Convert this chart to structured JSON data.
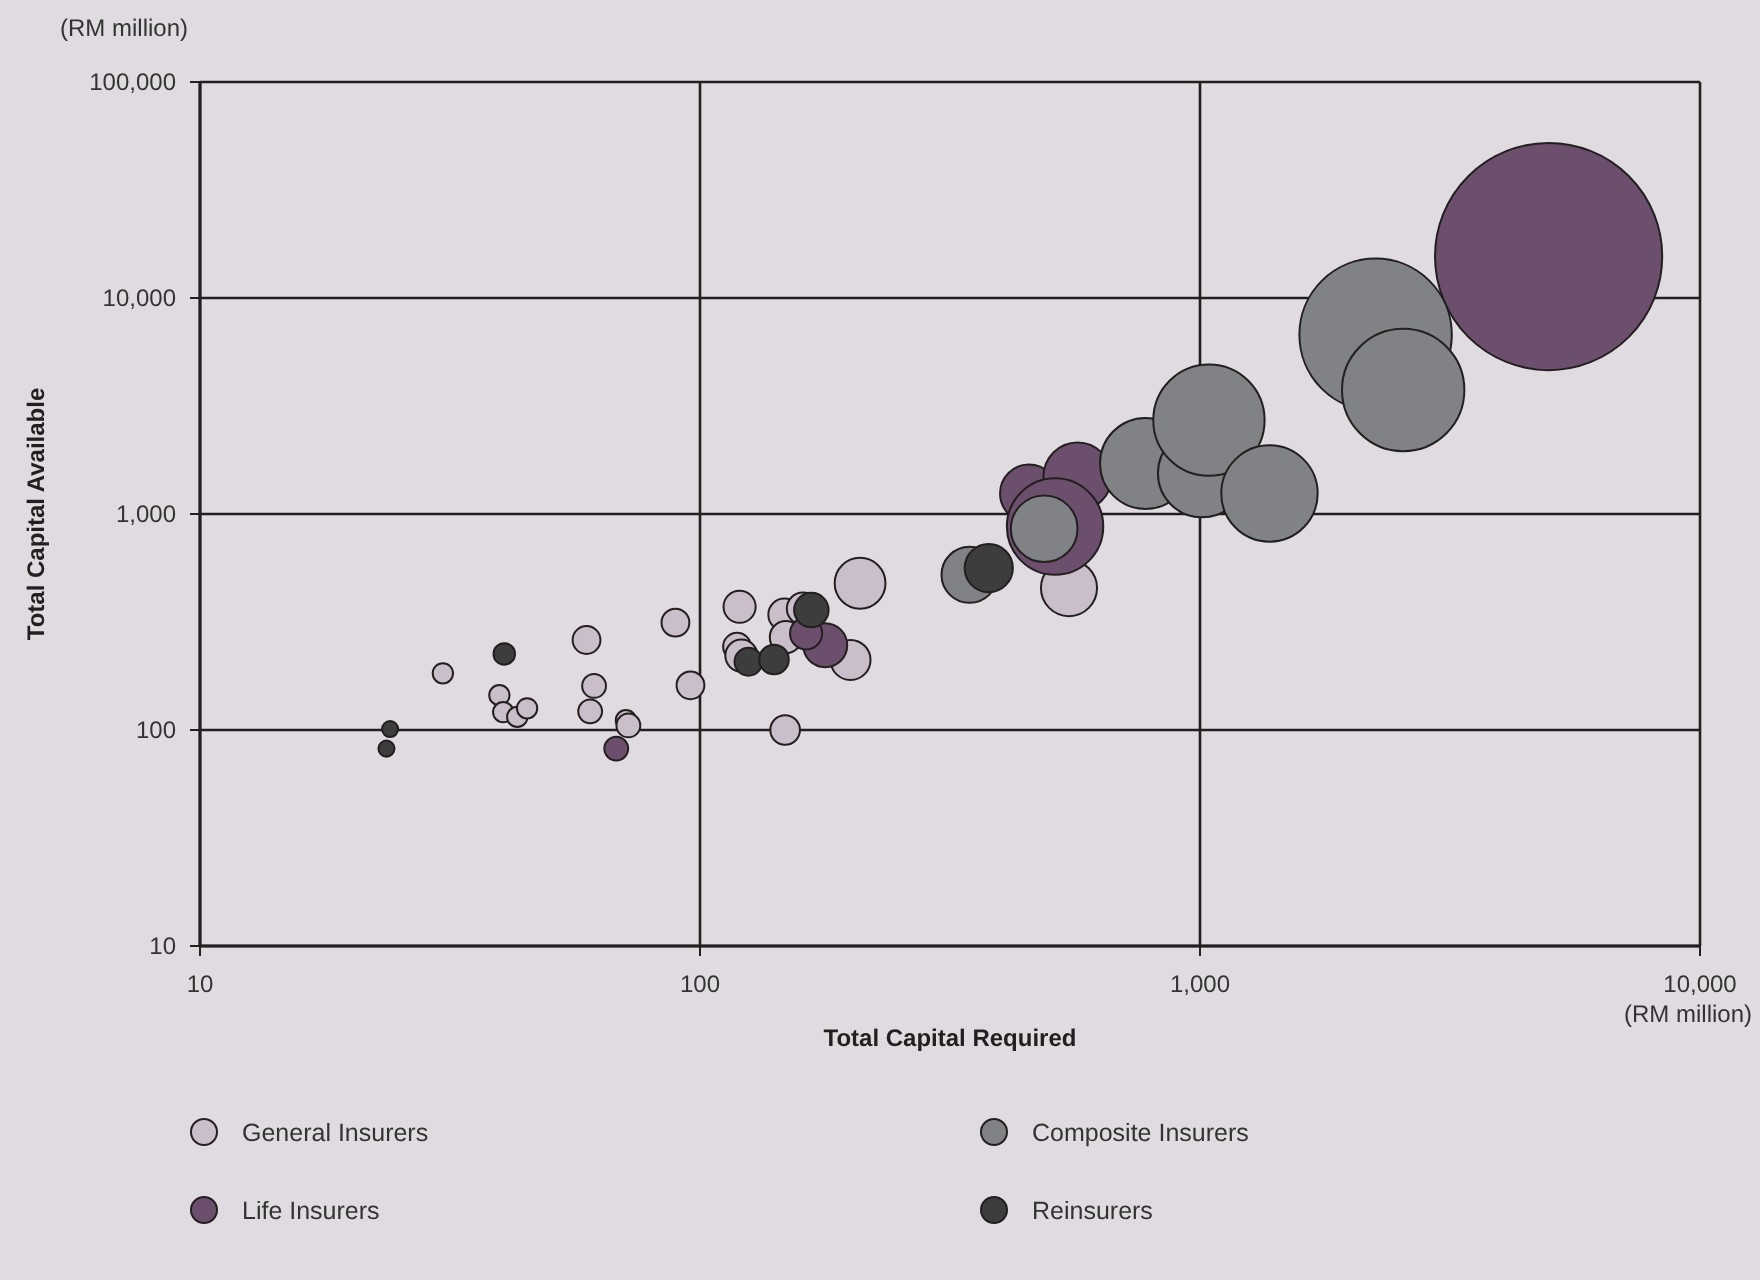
{
  "chart_data": {
    "type": "bubble",
    "xlabel": "Total Capital Required",
    "ylabel": "Total Capital Available",
    "log": "xy",
    "xlim": [
      10,
      10000
    ],
    "ylim": [
      10,
      100000
    ],
    "xticks": [
      10,
      100,
      {
        "value": 1000,
        "label": "1,000"
      },
      {
        "value": 10000,
        "label": "10,000"
      }
    ],
    "yticks": [
      10,
      100,
      {
        "value": 1000,
        "label": "1,000"
      },
      {
        "value": 10000,
        "label": "10,000"
      },
      {
        "value": 100000,
        "label": "100,000"
      }
    ],
    "grid": true,
    "legend": "bottom",
    "marker": "circle",
    "annotations": [
      "(RM million)",
      "(RM million)"
    ],
    "series": [
      {
        "name": "General Insurers",
        "color": "#c9bec9",
        "x": [
          30.6,
          39.7,
          40.4,
          43.1,
          45.1,
          59.3,
          61.4,
          60.3,
          71.1,
          71.9,
          89.3,
          95.7,
          120,
          118.6,
          121,
          147.5,
          148.5,
          209,
          200,
          148,
          160.6,
          547
        ],
        "values": [
          183,
          145,
          121,
          115,
          126,
          261,
          160,
          122,
          111,
          105,
          314,
          161,
          372,
          243,
          221,
          342,
          269,
          478,
          211,
          100,
          365,
          454
        ],
        "sizes": [
          0.008,
          0.008,
          0.008,
          0.008,
          0.008,
          0.015,
          0.011,
          0.011,
          0.008,
          0.011,
          0.015,
          0.015,
          0.02,
          0.015,
          0.02,
          0.02,
          0.02,
          0.05,
          0.031,
          0.017,
          0.02,
          0.061
        ]
      },
      {
        "name": "Life Insurers",
        "color": "#6c4f6c",
        "x": [
          68,
          178,
          163,
          455,
          569,
          513,
          4980
        ],
        "values": [
          82,
          247,
          280,
          1245,
          1489,
          875,
          15560
        ],
        "sizes": [
          0.011,
          0.0375,
          0.02,
          0.065,
          0.09,
          0.18,
          1
        ]
      },
      {
        "name": "Composite Insurers",
        "color": "#808285",
        "x": [
          346,
          488,
          778,
          1009,
          1042,
          1377,
          2245,
          2549
        ],
        "values": [
          523,
          855,
          1714,
          1542,
          2720,
          1245,
          6760,
          3750
        ],
        "sizes": [
          0.061,
          0.086,
          0.16,
          0.15,
          0.24,
          0.18,
          0.45,
          0.29
        ]
      },
      {
        "name": "Reinsurers",
        "color": "#3d3d3d",
        "x": [
          24,
          23.6,
          40.6,
          125,
          140.6,
          167,
          378
        ],
        "values": [
          101,
          82,
          225,
          207,
          212,
          359,
          562
        ],
        "sizes": [
          0.005,
          0.005,
          0.009,
          0.015,
          0.017,
          0.023,
          0.045
        ]
      }
    ]
  }
}
